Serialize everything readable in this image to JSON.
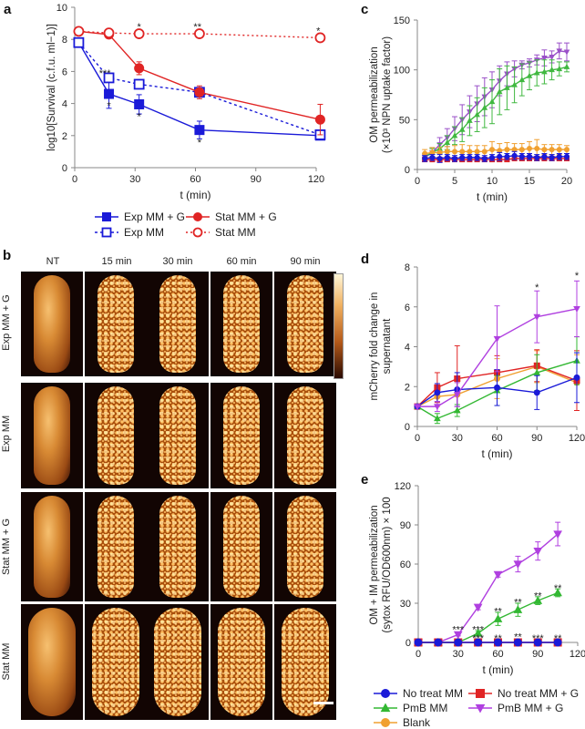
{
  "panel_letters": {
    "a": "a",
    "b": "b",
    "c": "c",
    "d": "d",
    "e": "e"
  },
  "panel_b": {
    "columns": [
      "NT",
      "15 min",
      "30 min",
      "60 min",
      "90 min"
    ],
    "rows": [
      "Exp MM + G",
      "Exp MM",
      "Stat MM + G",
      "Stat MM"
    ]
  },
  "colors": {
    "blue": "#1a1ad8",
    "red": "#e02424",
    "green": "#33b833",
    "purple": "#b040e0",
    "orange": "#f0a030"
  },
  "chart_data": [
    {
      "id": "a",
      "type": "line",
      "title": "",
      "xlabel": "t (min)",
      "ylabel": "log10[Survival (c.f.u. ml−1)]",
      "xlim": [
        0,
        120
      ],
      "ylim": [
        0,
        10
      ],
      "xticks": [
        0,
        30,
        60,
        90,
        120
      ],
      "yticks": [
        0,
        2,
        4,
        6,
        8,
        10
      ],
      "series": [
        {
          "name": "Exp MM + G",
          "color": "#1a1ad8",
          "marker": "square",
          "filled": true,
          "dash": "",
          "x": [
            2,
            17,
            32,
            62,
            122
          ],
          "y": [
            7.8,
            4.6,
            3.95,
            2.35,
            2.0
          ],
          "err": [
            0,
            0.9,
            0.6,
            0.55,
            0.1
          ]
        },
        {
          "name": "Exp MM",
          "color": "#1a1ad8",
          "marker": "square",
          "filled": false,
          "dash": "3,3",
          "x": [
            2,
            17,
            32,
            62,
            122
          ],
          "y": [
            7.8,
            5.6,
            5.2,
            4.7,
            2.05
          ],
          "err": [
            0,
            0.1,
            0.1,
            0.1,
            0.1
          ]
        },
        {
          "name": "Stat MM + G",
          "color": "#e02424",
          "marker": "circle",
          "filled": true,
          "dash": "",
          "x": [
            2,
            17,
            32,
            62,
            122
          ],
          "y": [
            8.5,
            8.3,
            6.2,
            4.7,
            3.0
          ],
          "err": [
            0,
            0.1,
            0.4,
            0.4,
            0.95
          ]
        },
        {
          "name": "Stat MM",
          "color": "#e02424",
          "marker": "circle",
          "filled": false,
          "dash": "2,3",
          "x": [
            2,
            17,
            32,
            62,
            122
          ],
          "y": [
            8.5,
            8.4,
            8.35,
            8.35,
            8.1
          ],
          "err": [
            0,
            0,
            0,
            0,
            0
          ]
        }
      ],
      "annotations": [
        {
          "text": "***",
          "x": 15,
          "y": 5.9
        },
        {
          "text": "*",
          "x": 17,
          "y": 3.9
        },
        {
          "text": "*",
          "x": 32,
          "y": 3.2
        },
        {
          "text": "*",
          "x": 62,
          "y": 1.6
        },
        {
          "text": "*",
          "x": 32,
          "y": 8.8
        },
        {
          "text": "**",
          "x": 61,
          "y": 8.8
        },
        {
          "text": "*",
          "x": 121,
          "y": 8.55
        }
      ]
    },
    {
      "id": "c",
      "type": "line",
      "title": "",
      "xlabel": "t (min)",
      "ylabel": [
        "OM permeabilization",
        "(×10³ NPN uptake factor)"
      ],
      "xlim": [
        0,
        20
      ],
      "ylim": [
        0,
        150
      ],
      "xticks": [
        0,
        5,
        10,
        15,
        20
      ],
      "yticks": [
        0,
        50,
        100,
        150
      ],
      "series": [
        {
          "name": "PmB MM + G",
          "color": "#9a50c8",
          "marker": "tridown",
          "filled": true,
          "dash": "",
          "x": [
            1,
            2,
            3,
            4,
            5,
            6,
            7,
            8,
            9,
            10,
            11,
            12,
            13,
            14,
            15,
            16,
            17,
            18,
            19,
            20
          ],
          "y": [
            12,
            17,
            25,
            32,
            41,
            50,
            58,
            66,
            73,
            80,
            89,
            96,
            101,
            105,
            107,
            110,
            112,
            113,
            119,
            118
          ],
          "err": [
            3,
            5,
            7,
            9,
            12,
            15,
            16,
            18,
            19,
            18,
            15,
            12,
            8,
            4,
            4,
            5,
            8,
            6,
            8,
            9
          ]
        },
        {
          "name": "PmB MM",
          "color": "#40b840",
          "marker": "triup",
          "filled": true,
          "dash": "",
          "x": [
            1,
            2,
            3,
            4,
            5,
            6,
            7,
            8,
            9,
            10,
            11,
            12,
            13,
            14,
            15,
            16,
            17,
            18,
            19,
            20
          ],
          "y": [
            13,
            17,
            21,
            27,
            34,
            40,
            49,
            55,
            62,
            68,
            78,
            82,
            85,
            90,
            94,
            97,
            98,
            100,
            101,
            103
          ],
          "err": [
            3,
            4,
            5,
            7,
            9,
            12,
            15,
            17,
            20,
            22,
            23,
            22,
            18,
            16,
            14,
            13,
            12,
            10,
            7,
            5
          ]
        },
        {
          "name": "Blank",
          "color": "#f0a030",
          "marker": "circle",
          "filled": true,
          "dash": "",
          "x": [
            1,
            2,
            3,
            4,
            5,
            6,
            7,
            8,
            9,
            10,
            11,
            12,
            13,
            14,
            15,
            16,
            17,
            18,
            19,
            20
          ],
          "y": [
            16,
            17,
            17,
            18,
            18,
            18,
            18,
            18,
            18,
            20,
            19,
            20,
            20,
            20,
            21,
            21,
            20,
            20,
            20,
            20
          ],
          "err": [
            4,
            5,
            5,
            5,
            6,
            7,
            6,
            6,
            6,
            8,
            7,
            7,
            6,
            6,
            7,
            9,
            5,
            5,
            5,
            4
          ]
        },
        {
          "name": "No treat MM + G",
          "color": "#e02424",
          "marker": "square",
          "filled": true,
          "dash": "",
          "x": [
            1,
            2,
            3,
            4,
            5,
            6,
            7,
            8,
            9,
            10,
            11,
            12,
            13,
            14,
            15,
            16,
            17,
            18,
            19,
            20
          ],
          "y": [
            10,
            10,
            10,
            10,
            10,
            10,
            10,
            10,
            10,
            10,
            10,
            10,
            11,
            11,
            11,
            11,
            11,
            11,
            11,
            11
          ],
          "err": [
            2,
            2,
            2,
            2,
            2,
            2,
            2,
            2,
            2,
            2,
            2,
            2,
            2,
            2,
            2,
            2,
            2,
            2,
            2,
            2
          ]
        },
        {
          "name": "No treat MM",
          "color": "#1a1ad8",
          "marker": "circle",
          "filled": true,
          "dash": "",
          "x": [
            1,
            2,
            3,
            4,
            5,
            6,
            7,
            8,
            9,
            10,
            11,
            12,
            13,
            14,
            15,
            16,
            17,
            18,
            19,
            20
          ],
          "y": [
            11,
            12,
            11,
            12,
            11,
            12,
            12,
            12,
            11,
            12,
            13,
            13,
            14,
            13,
            13,
            12,
            13,
            12,
            13,
            13
          ],
          "err": [
            3,
            3,
            4,
            3,
            3,
            3,
            3,
            3,
            3,
            3,
            4,
            3,
            4,
            3,
            3,
            3,
            3,
            3,
            3,
            3
          ]
        }
      ],
      "annotations": []
    },
    {
      "id": "d",
      "type": "line",
      "title": "",
      "xlabel": "t (min)",
      "ylabel": [
        "mCherry fold change in",
        "supernatant"
      ],
      "xlim": [
        0,
        120
      ],
      "ylim": [
        0,
        8
      ],
      "xticks": [
        0,
        30,
        60,
        90,
        120
      ],
      "yticks": [
        0,
        2,
        4,
        6,
        8
      ],
      "series": [
        {
          "name": "Blank",
          "color": "#f0a030",
          "marker": "circle",
          "filled": true,
          "dash": "",
          "x": [
            0,
            15,
            30,
            60,
            90,
            120
          ],
          "y": [
            1,
            1.5,
            1.6,
            2.4,
            3.0,
            2.2
          ],
          "err": [
            0,
            0.5,
            0.6,
            1.0,
            0.8,
            1.4
          ]
        },
        {
          "name": "No treat MM + G",
          "color": "#e02424",
          "marker": "square",
          "filled": true,
          "dash": "",
          "x": [
            0,
            15,
            30,
            60,
            90,
            120
          ],
          "y": [
            1,
            1.95,
            2.4,
            2.7,
            3.05,
            2.3
          ],
          "err": [
            0,
            0.75,
            1.65,
            0.85,
            0.8,
            1.5
          ]
        },
        {
          "name": "PmB MM",
          "color": "#33b833",
          "marker": "triup",
          "filled": true,
          "dash": "",
          "x": [
            0,
            15,
            30,
            60,
            90,
            120
          ],
          "y": [
            1,
            0.4,
            0.8,
            1.8,
            2.7,
            3.3
          ],
          "err": [
            0,
            0.25,
            0.3,
            0.75,
            0.9,
            1.2
          ]
        },
        {
          "name": "No treat MM",
          "color": "#1a1ad8",
          "marker": "circle",
          "filled": true,
          "dash": "",
          "x": [
            0,
            15,
            30,
            60,
            90,
            120
          ],
          "y": [
            1,
            1.7,
            1.85,
            1.95,
            1.7,
            2.45
          ],
          "err": [
            0,
            0.45,
            0.85,
            0.9,
            0.85,
            1.25
          ]
        },
        {
          "name": "PmB MM + G",
          "color": "#b040e0",
          "marker": "tridown",
          "filled": true,
          "dash": "",
          "x": [
            0,
            15,
            30,
            60,
            90,
            120
          ],
          "y": [
            1,
            1.0,
            1.6,
            4.4,
            5.5,
            5.9
          ],
          "err": [
            0,
            0.25,
            0.6,
            1.65,
            1.3,
            1.4
          ]
        }
      ],
      "annotations": [
        {
          "text": "*",
          "x": 90,
          "y": 7.0
        },
        {
          "text": "*",
          "x": 120,
          "y": 7.6
        }
      ]
    },
    {
      "id": "e",
      "type": "line",
      "title": "",
      "xlabel": "t (min)",
      "ylabel": [
        "OM + IM permeabilization",
        "(sytox RFU/OD600nm) × 100"
      ],
      "xlim": [
        0,
        120
      ],
      "ylim": [
        0,
        120
      ],
      "xticks": [
        0,
        30,
        60,
        90,
        120
      ],
      "yticks": [
        0,
        30,
        60,
        90,
        120
      ],
      "series": [
        {
          "name": "PmB MM + G",
          "color": "#b040e0",
          "marker": "tridown",
          "filled": true,
          "dash": "",
          "x": [
            0,
            15,
            30,
            45,
            60,
            75,
            90,
            105
          ],
          "y": [
            0,
            0,
            6,
            27,
            52,
            60,
            70,
            83
          ],
          "err": [
            0,
            0,
            1,
            2,
            2,
            6,
            7,
            9
          ]
        },
        {
          "name": "PmB MM",
          "color": "#33b833",
          "marker": "triup",
          "filled": true,
          "dash": "",
          "x": [
            0,
            15,
            30,
            45,
            60,
            75,
            90,
            105
          ],
          "y": [
            0,
            0,
            0,
            7,
            18,
            25,
            32,
            38
          ],
          "err": [
            0,
            0,
            0,
            2,
            5,
            5,
            3,
            3
          ]
        },
        {
          "name": "Blank",
          "color": "#f0a030",
          "marker": "circle",
          "filled": true,
          "dash": "",
          "x": [
            0,
            15,
            30,
            45,
            60,
            75,
            90,
            105
          ],
          "y": [
            0,
            0,
            0,
            0,
            0,
            0,
            0,
            0
          ],
          "err": [
            0,
            0,
            0,
            0,
            0,
            0,
            0,
            0
          ]
        },
        {
          "name": "No treat MM + G",
          "color": "#e02424",
          "marker": "square",
          "filled": true,
          "dash": "",
          "x": [
            0,
            15,
            30,
            45,
            60,
            75,
            90,
            105
          ],
          "y": [
            0,
            0,
            0,
            0,
            0,
            0,
            0,
            0
          ],
          "err": [
            0,
            0,
            0,
            0,
            0,
            0,
            0,
            0
          ]
        },
        {
          "name": "No treat MM",
          "color": "#1a1ad8",
          "marker": "circle",
          "filled": true,
          "dash": "",
          "x": [
            0,
            15,
            30,
            45,
            60,
            75,
            90,
            105
          ],
          "y": [
            0,
            0,
            0,
            0,
            0,
            0,
            0,
            0
          ],
          "err": [
            0,
            0,
            0,
            0,
            0,
            0,
            0,
            0
          ]
        }
      ],
      "annotations": [
        {
          "text": "***",
          "x": 30,
          "y": 10
        },
        {
          "text": "***",
          "x": 45,
          "y": 10
        },
        {
          "text": "***",
          "x": 45,
          "y": 3.5
        },
        {
          "text": "**",
          "x": 60,
          "y": 24
        },
        {
          "text": "**",
          "x": 75,
          "y": 31
        },
        {
          "text": "**",
          "x": 90,
          "y": 36
        },
        {
          "text": "**",
          "x": 105,
          "y": 42
        },
        {
          "text": "**",
          "x": 60,
          "y": 3.5
        },
        {
          "text": "**",
          "x": 75,
          "y": 4.5
        },
        {
          "text": "***",
          "x": 90,
          "y": 3.5
        },
        {
          "text": "**",
          "x": 105,
          "y": 3.5
        }
      ]
    }
  ],
  "legend_a": [
    {
      "name": "Exp MM + G",
      "color": "#1a1ad8",
      "marker": "square",
      "filled": true,
      "dash": ""
    },
    {
      "name": "Stat MM + G",
      "color": "#e02424",
      "marker": "circle",
      "filled": true,
      "dash": ""
    },
    {
      "name": "Exp MM",
      "color": "#1a1ad8",
      "marker": "square",
      "filled": false,
      "dash": "3,3"
    },
    {
      "name": "Stat MM",
      "color": "#e02424",
      "marker": "circle",
      "filled": false,
      "dash": "2,3"
    }
  ],
  "legend_e": [
    {
      "name": "No treat MM",
      "color": "#1a1ad8",
      "marker": "circle",
      "filled": true,
      "dash": ""
    },
    {
      "name": "No treat MM + G",
      "color": "#e02424",
      "marker": "square",
      "filled": true,
      "dash": ""
    },
    {
      "name": "PmB MM",
      "color": "#33b833",
      "marker": "triup",
      "filled": true,
      "dash": ""
    },
    {
      "name": "PmB MM + G",
      "color": "#b040e0",
      "marker": "tridown",
      "filled": true,
      "dash": ""
    },
    {
      "name": "Blank",
      "color": "#f0a030",
      "marker": "circle",
      "filled": true,
      "dash": ""
    }
  ]
}
